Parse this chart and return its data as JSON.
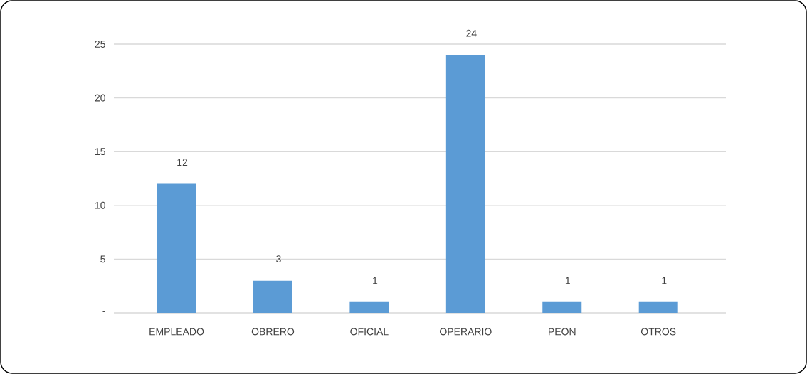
{
  "chart_data": {
    "type": "bar",
    "categories": [
      "EMPLEADO",
      "OBRERO",
      "OFICIAL",
      "OPERARIO",
      "PEON",
      "OTROS"
    ],
    "values": [
      12,
      3,
      1,
      24,
      1,
      1
    ],
    "color": "#5b9bd5",
    "ylim": [
      0,
      25
    ],
    "yticks": [
      {
        "value": 0,
        "label": "-"
      },
      5,
      10,
      15,
      20,
      25
    ],
    "grid": "y",
    "data_labels": true
  }
}
